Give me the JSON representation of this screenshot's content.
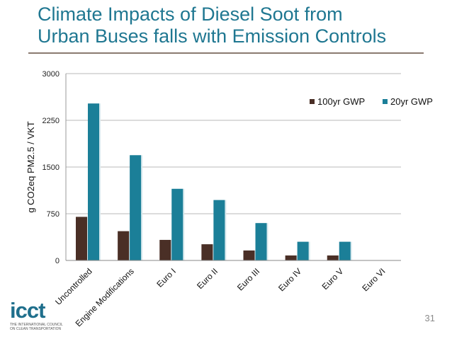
{
  "slide": {
    "title_line1": "Climate Impacts of Diesel Soot from",
    "title_line2": "Urban Buses falls with Emission Controls",
    "page_number": "31",
    "logo": {
      "wordmark": "icct",
      "tagline1": "THE INTERNATIONAL COUNCIL",
      "tagline2": "ON CLEAN TRANSPORTATION"
    }
  },
  "colors": {
    "title": "#1f7791",
    "series_100yr": "#4a2f26",
    "series_20yr": "#1b7f98"
  },
  "chart_data": {
    "type": "bar",
    "title": "",
    "xlabel": "",
    "ylabel": "g CO2eq PM2.5 / VKT",
    "ylim": [
      0,
      3000
    ],
    "yticks": [
      0,
      750,
      1500,
      2250,
      3000
    ],
    "grid": true,
    "legend_position": "top-right",
    "categories": [
      "Uncontrolled",
      "Engine Modifications",
      "Euro I",
      "Euro II",
      "Euro III",
      "Euro IV",
      "Euro V",
      "Euro VI"
    ],
    "series": [
      {
        "name": "100yr GWP",
        "values": [
          700,
          470,
          330,
          260,
          160,
          80,
          80,
          0
        ]
      },
      {
        "name": "20yr GWP",
        "values": [
          2520,
          1690,
          1150,
          970,
          600,
          300,
          300,
          0
        ]
      }
    ]
  }
}
